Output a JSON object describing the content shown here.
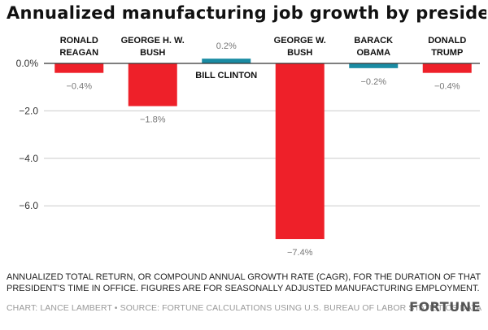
{
  "header": {
    "title": "Annualized manufacturing job growth by presidency"
  },
  "chart_data": {
    "type": "bar",
    "title": "Annualized manufacturing job growth by presidency",
    "categories": [
      [
        "RONALD",
        "REAGAN"
      ],
      [
        "GEORGE H. W.",
        "BUSH"
      ],
      [
        "BILL CLINTON"
      ],
      [
        "GEORGE W.",
        "BUSH"
      ],
      [
        "BARACK",
        "OBAMA"
      ],
      [
        "DONALD",
        "TRUMP"
      ]
    ],
    "values": [
      -0.4,
      -1.8,
      0.2,
      -7.4,
      -0.2,
      -0.4
    ],
    "data_labels": [
      "−0.4%",
      "−1.8%",
      "0.2%",
      "−7.4%",
      "−0.2%",
      "−0.4%"
    ],
    "y_ticks": [
      0,
      -2,
      -4,
      -6
    ],
    "y_tick_labels": [
      "0.0%",
      "−2.0",
      "−4.0",
      "−6.0"
    ],
    "ylim": [
      -7.6,
      0.3
    ],
    "party": [
      "republican",
      "republican",
      "democrat",
      "republican",
      "democrat",
      "republican"
    ],
    "colors": {
      "republican": "#ee2029",
      "democrat": "#1a8ba3",
      "grid": "#cccccc",
      "zero_line": "#333333"
    },
    "xlabel": "",
    "ylabel": "",
    "grid": true
  },
  "footer": {
    "note": "ANNUALIZED TOTAL RETURN, OR COMPOUND ANNUAL GROWTH RATE (CAGR), FOR THE DURATION OF THAT PRESIDENT'S TIME IN OFFICE. FIGURES ARE FOR SEASONALLY ADJUSTED MANUFACTURING EMPLOYMENT.",
    "credit": "CHART: LANCE LAMBERT • SOURCE: FORTUNE CALCULATIONS USING U.S. BUREAU OF LABOR STATISTICS DATA",
    "brand": "FORTUNE"
  }
}
